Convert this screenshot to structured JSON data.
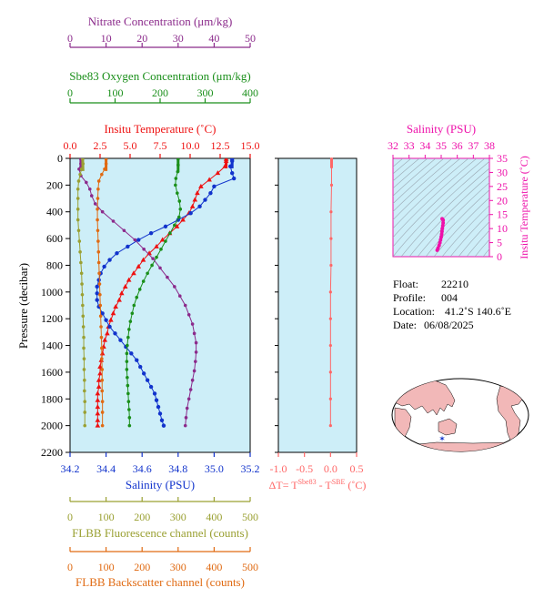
{
  "colors": {
    "nitrate": "#8b2a8b",
    "oxygen": "#1a8f1a",
    "temperature": "#ee1111",
    "salinity": "#1133cc",
    "fluorescence": "#9aa032",
    "backscatter": "#e06a12",
    "delta": "#ff6666",
    "ts": "#ee11aa",
    "panel_bg": "#cdeef8",
    "land": "#f2b8b8"
  },
  "chart_data": [
    {
      "type": "line",
      "axes": {
        "pressure": {
          "label": "Pressure (decibar)",
          "min": 0,
          "max": 2200,
          "ticks": [
            0,
            200,
            400,
            600,
            800,
            1000,
            1200,
            1400,
            1600,
            1800,
            2000,
            2200
          ]
        },
        "temperature": {
          "label": "Insitu Temperature (˚C)",
          "min": 0,
          "max": 15,
          "ticks": [
            "0.0",
            "2.5",
            "5.0",
            "7.5",
            "10.0",
            "12.5",
            "15.0"
          ]
        },
        "salinity": {
          "label": "Salinity (PSU)",
          "min": 34.2,
          "max": 35.2,
          "ticks": [
            "34.2",
            "34.4",
            "34.6",
            "34.8",
            "35.0",
            "35.2"
          ]
        },
        "oxygen": {
          "label": "Sbe83 Oxygen Concentration (μm/kg)",
          "min": 0,
          "max": 400,
          "ticks": [
            "0",
            "100",
            "200",
            "300",
            "400"
          ]
        },
        "nitrate": {
          "label": "Nitrate Concentration (μm/kg)",
          "min": 0,
          "max": 50,
          "ticks": [
            "0",
            "10",
            "20",
            "30",
            "40",
            "50"
          ]
        },
        "fluorescence": {
          "label": "FLBB Fluorescence channel (counts)",
          "min": 0,
          "max": 500,
          "ticks": [
            "0",
            "100",
            "200",
            "300",
            "400",
            "500"
          ]
        },
        "backscatter": {
          "label": "FLBB Backscatter channel (counts)",
          "min": 0,
          "max": 500,
          "ticks": [
            "0",
            "100",
            "200",
            "300",
            "400",
            "500"
          ]
        }
      },
      "series": [
        {
          "key": "temperature",
          "marker": "triangle",
          "points": [
            [
              13.0,
              5
            ],
            [
              13.0,
              20
            ],
            [
              12.9,
              60
            ],
            [
              12.3,
              110
            ],
            [
              11.6,
              160
            ],
            [
              10.9,
              210
            ],
            [
              10.6,
              260
            ],
            [
              10.4,
              310
            ],
            [
              10.2,
              360
            ],
            [
              9.9,
              410
            ],
            [
              9.4,
              460
            ],
            [
              8.9,
              510
            ],
            [
              8.3,
              560
            ],
            [
              7.7,
              610
            ],
            [
              7.2,
              660
            ],
            [
              6.6,
              710
            ],
            [
              6.1,
              760
            ],
            [
              5.7,
              810
            ],
            [
              5.3,
              860
            ],
            [
              4.9,
              910
            ],
            [
              4.6,
              960
            ],
            [
              4.3,
              1010
            ],
            [
              4.1,
              1060
            ],
            [
              3.8,
              1110
            ],
            [
              3.6,
              1160
            ],
            [
              3.4,
              1210
            ],
            [
              3.2,
              1260
            ],
            [
              3.1,
              1310
            ],
            [
              2.9,
              1360
            ],
            [
              2.8,
              1410
            ],
            [
              2.7,
              1460
            ],
            [
              2.6,
              1510
            ],
            [
              2.5,
              1560
            ],
            [
              2.5,
              1610
            ],
            [
              2.4,
              1660
            ],
            [
              2.4,
              1710
            ],
            [
              2.3,
              1760
            ],
            [
              2.3,
              1810
            ],
            [
              2.3,
              1860
            ],
            [
              2.3,
              1910
            ],
            [
              2.3,
              1960
            ],
            [
              2.3,
              2000
            ]
          ]
        },
        {
          "key": "salinity",
          "marker": "circle",
          "points": [
            [
              35.1,
              5
            ],
            [
              35.1,
              20
            ],
            [
              35.09,
              60
            ],
            [
              35.1,
              110
            ],
            [
              35.11,
              150
            ],
            [
              35.0,
              210
            ],
            [
              34.98,
              260
            ],
            [
              34.95,
              310
            ],
            [
              34.92,
              360
            ],
            [
              34.87,
              410
            ],
            [
              34.8,
              460
            ],
            [
              34.73,
              510
            ],
            [
              34.65,
              560
            ],
            [
              34.58,
              610
            ],
            [
              34.52,
              660
            ],
            [
              34.46,
              710
            ],
            [
              34.42,
              760
            ],
            [
              34.39,
              810
            ],
            [
              34.37,
              860
            ],
            [
              34.36,
              910
            ],
            [
              34.35,
              960
            ],
            [
              34.35,
              1010
            ],
            [
              34.35,
              1060
            ],
            [
              34.36,
              1110
            ],
            [
              34.38,
              1160
            ],
            [
              34.4,
              1210
            ],
            [
              34.42,
              1260
            ],
            [
              34.45,
              1310
            ],
            [
              34.48,
              1360
            ],
            [
              34.51,
              1410
            ],
            [
              34.54,
              1460
            ],
            [
              34.57,
              1510
            ],
            [
              34.59,
              1560
            ],
            [
              34.61,
              1610
            ],
            [
              34.63,
              1660
            ],
            [
              34.65,
              1710
            ],
            [
              34.67,
              1760
            ],
            [
              34.68,
              1810
            ],
            [
              34.69,
              1860
            ],
            [
              34.7,
              1910
            ],
            [
              34.71,
              1960
            ],
            [
              34.72,
              2000
            ]
          ]
        },
        {
          "key": "oxygen",
          "marker": "circle",
          "points": [
            [
              240,
              5
            ],
            [
              240,
              50
            ],
            [
              239,
              100
            ],
            [
              235,
              150
            ],
            [
              234,
              200
            ],
            [
              238,
              260
            ],
            [
              243,
              320
            ],
            [
              245,
              380
            ],
            [
              242,
              440
            ],
            [
              232,
              500
            ],
            [
              222,
              560
            ],
            [
              212,
              620
            ],
            [
              202,
              680
            ],
            [
              192,
              740
            ],
            [
              182,
              800
            ],
            [
              172,
              860
            ],
            [
              163,
              920
            ],
            [
              155,
              980
            ],
            [
              148,
              1040
            ],
            [
              142,
              1100
            ],
            [
              138,
              1160
            ],
            [
              134,
              1220
            ],
            [
              131,
              1280
            ],
            [
              129,
              1340
            ],
            [
              127,
              1400
            ],
            [
              126,
              1460
            ],
            [
              126,
              1520
            ],
            [
              126,
              1580
            ],
            [
              127,
              1640
            ],
            [
              128,
              1700
            ],
            [
              129,
              1760
            ],
            [
              130,
              1820
            ],
            [
              131,
              1880
            ],
            [
              132,
              1940
            ],
            [
              132,
              2000
            ]
          ]
        },
        {
          "key": "nitrate",
          "marker": "circle",
          "points": [
            [
              3.0,
              5
            ],
            [
              3.0,
              40
            ],
            [
              2.5,
              80
            ],
            [
              3.0,
              130
            ],
            [
              4.5,
              180
            ],
            [
              5.5,
              230
            ],
            [
              6.0,
              280
            ],
            [
              7.0,
              340
            ],
            [
              9.0,
              400
            ],
            [
              12.0,
              470
            ],
            [
              15.0,
              540
            ],
            [
              18.0,
              610
            ],
            [
              20.5,
              680
            ],
            [
              23.0,
              750
            ],
            [
              25.0,
              820
            ],
            [
              27.0,
              890
            ],
            [
              29.0,
              960
            ],
            [
              30.5,
              1030
            ],
            [
              32.0,
              1100
            ],
            [
              33.0,
              1170
            ],
            [
              34.0,
              1240
            ],
            [
              34.5,
              1310
            ],
            [
              35.0,
              1380
            ],
            [
              35.0,
              1450
            ],
            [
              34.8,
              1520
            ],
            [
              34.5,
              1590
            ],
            [
              34.0,
              1660
            ],
            [
              33.5,
              1730
            ],
            [
              33.0,
              1800
            ],
            [
              32.5,
              1870
            ],
            [
              32.2,
              1940
            ],
            [
              32.0,
              2000
            ]
          ]
        },
        {
          "key": "fluorescence",
          "marker": "circle",
          "points": [
            [
              35,
              5
            ],
            [
              36,
              40
            ],
            [
              32,
              80
            ],
            [
              28,
              120
            ],
            [
              24,
              170
            ],
            [
              22,
              230
            ],
            [
              22,
              300
            ],
            [
              22,
              380
            ],
            [
              22,
              460
            ],
            [
              24,
              540
            ],
            [
              26,
              620
            ],
            [
              28,
              700
            ],
            [
              30,
              780
            ],
            [
              32,
              860
            ],
            [
              33,
              940
            ],
            [
              34,
              1020
            ],
            [
              35,
              1100
            ],
            [
              36,
              1180
            ],
            [
              37,
              1260
            ],
            [
              38,
              1340
            ],
            [
              38,
              1420
            ],
            [
              39,
              1500
            ],
            [
              39,
              1580
            ],
            [
              40,
              1660
            ],
            [
              40,
              1740
            ],
            [
              41,
              1820
            ],
            [
              41,
              1900
            ],
            [
              41,
              2000
            ]
          ]
        },
        {
          "key": "backscatter",
          "marker": "circle",
          "points": [
            [
              100,
              5
            ],
            [
              100,
              40
            ],
            [
              96,
              80
            ],
            [
              88,
              120
            ],
            [
              80,
              170
            ],
            [
              78,
              230
            ],
            [
              77,
              300
            ],
            [
              76,
              380
            ],
            [
              76,
              460
            ],
            [
              77,
              540
            ],
            [
              78,
              620
            ],
            [
              79,
              700
            ],
            [
              80,
              780
            ],
            [
              81,
              860
            ],
            [
              82,
              940
            ],
            [
              83,
              1020
            ],
            [
              84,
              1100
            ],
            [
              85,
              1180
            ],
            [
              86,
              1260
            ],
            [
              87,
              1340
            ],
            [
              88,
              1420
            ],
            [
              88,
              1500
            ],
            [
              89,
              1580
            ],
            [
              89,
              1660
            ],
            [
              89,
              1740
            ],
            [
              90,
              1820
            ],
            [
              90,
              1900
            ],
            [
              90,
              2000
            ]
          ]
        }
      ]
    },
    {
      "type": "line",
      "xlabel": "ΔT= T",
      "xlabel_sup1": "Sbe83",
      "xlabel_mid": " - T",
      "xlabel_sup2": "SBE",
      "xlabel_end": " (˚C)",
      "xlim": [
        -1.0,
        0.5
      ],
      "ticks": [
        "-1.0",
        "-0.5",
        "0.0",
        "0.5"
      ],
      "points": [
        [
          0.02,
          5
        ],
        [
          0.02,
          200
        ],
        [
          0.01,
          400
        ],
        [
          0.01,
          600
        ],
        [
          0.01,
          800
        ],
        [
          0.0,
          1000
        ],
        [
          0.0,
          1200
        ],
        [
          0.0,
          1400
        ],
        [
          0.0,
          1600
        ],
        [
          0.0,
          1800
        ],
        [
          0.0,
          2000
        ]
      ]
    },
    {
      "type": "scatter",
      "title": "Salinity (PSU)",
      "ylabel": "Insitu Temperature (˚C)",
      "xlim": [
        32,
        38
      ],
      "ylim": [
        0,
        35
      ],
      "xticks": [
        "32",
        "33",
        "34",
        "35",
        "36",
        "37",
        "38"
      ],
      "yticks": [
        "0",
        "5",
        "10",
        "15",
        "20",
        "25",
        "30",
        "35"
      ],
      "points": [
        [
          34.75,
          2.3
        ],
        [
          34.8,
          3
        ],
        [
          34.87,
          4
        ],
        [
          34.92,
          5
        ],
        [
          34.96,
          6
        ],
        [
          35.0,
          7
        ],
        [
          35.03,
          8
        ],
        [
          35.05,
          9
        ],
        [
          35.07,
          10
        ],
        [
          35.1,
          11
        ],
        [
          35.12,
          12
        ],
        [
          35.12,
          13
        ],
        [
          35.06,
          13.5
        ]
      ]
    }
  ],
  "info": {
    "float_label": "Float:",
    "float_value": "22210",
    "profile_label": "Profile:",
    "profile_value": "004",
    "location_label": "Location:",
    "location_value": "41.2˚S  140.6˚E",
    "date_label": "Date:",
    "date_value": "06/08/2025"
  }
}
